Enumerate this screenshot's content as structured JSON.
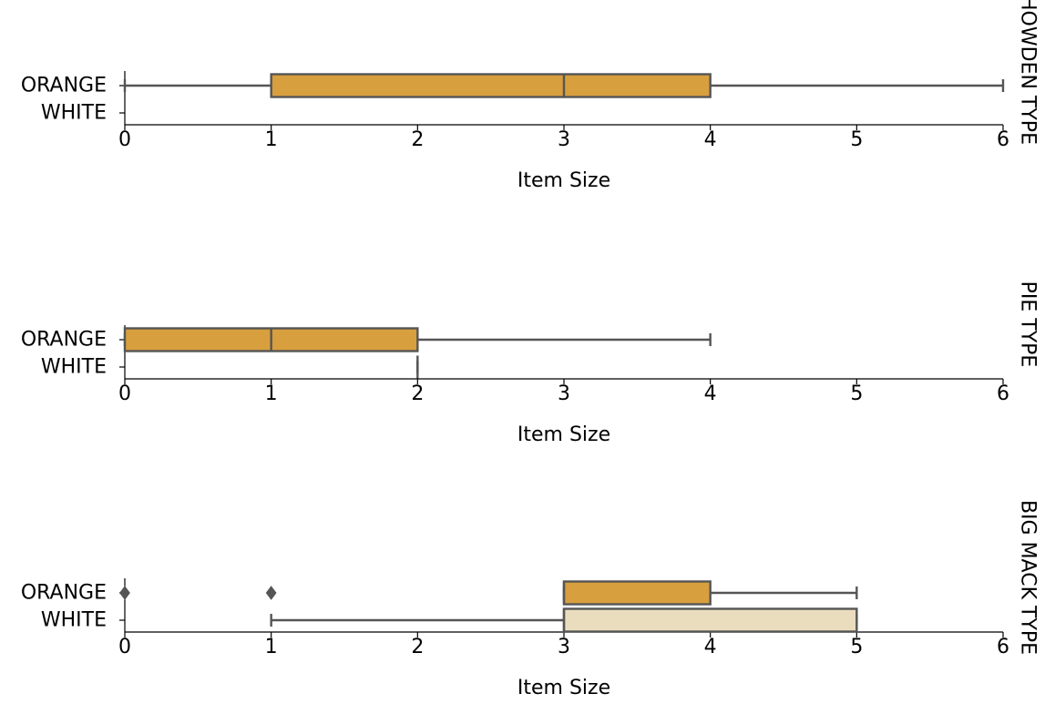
{
  "chart_data": {
    "type": "boxplot",
    "orientation": "horizontal",
    "categories": [
      "ORANGE",
      "WHITE"
    ],
    "colors": {
      "ORANGE": "#D89F3E",
      "WHITE": "#EADDBE",
      "line": "#555555"
    },
    "xlim": [
      0,
      6
    ],
    "xticks": [
      "0",
      "1",
      "2",
      "3",
      "4",
      "5",
      "6"
    ],
    "xlabel": "Item Size",
    "panels": [
      {
        "facet_label": "HOWDEN TYPE",
        "boxes": [
          {
            "category": "ORANGE",
            "whisker_low": 0,
            "q1": 1,
            "median": 3,
            "q3": 4,
            "whisker_high": 6,
            "outliers": []
          }
        ]
      },
      {
        "facet_label": "PIE TYPE",
        "boxes": [
          {
            "category": "ORANGE",
            "whisker_low": 0,
            "q1": 0,
            "median": 1,
            "q3": 2,
            "whisker_high": 4,
            "outliers": []
          },
          {
            "category": "WHITE",
            "whisker_low": 2,
            "q1": 2,
            "median": 2,
            "q3": 2,
            "whisker_high": 2,
            "outliers": []
          }
        ]
      },
      {
        "facet_label": "BIG MACK TYPE",
        "boxes": [
          {
            "category": "ORANGE",
            "whisker_low": 3,
            "q1": 3,
            "median": 3,
            "q3": 4,
            "whisker_high": 5,
            "outliers": [
              0,
              1
            ]
          },
          {
            "category": "WHITE",
            "whisker_low": 1,
            "q1": 3,
            "median": 3,
            "q3": 5,
            "whisker_high": 5,
            "outliers": []
          }
        ]
      }
    ]
  }
}
